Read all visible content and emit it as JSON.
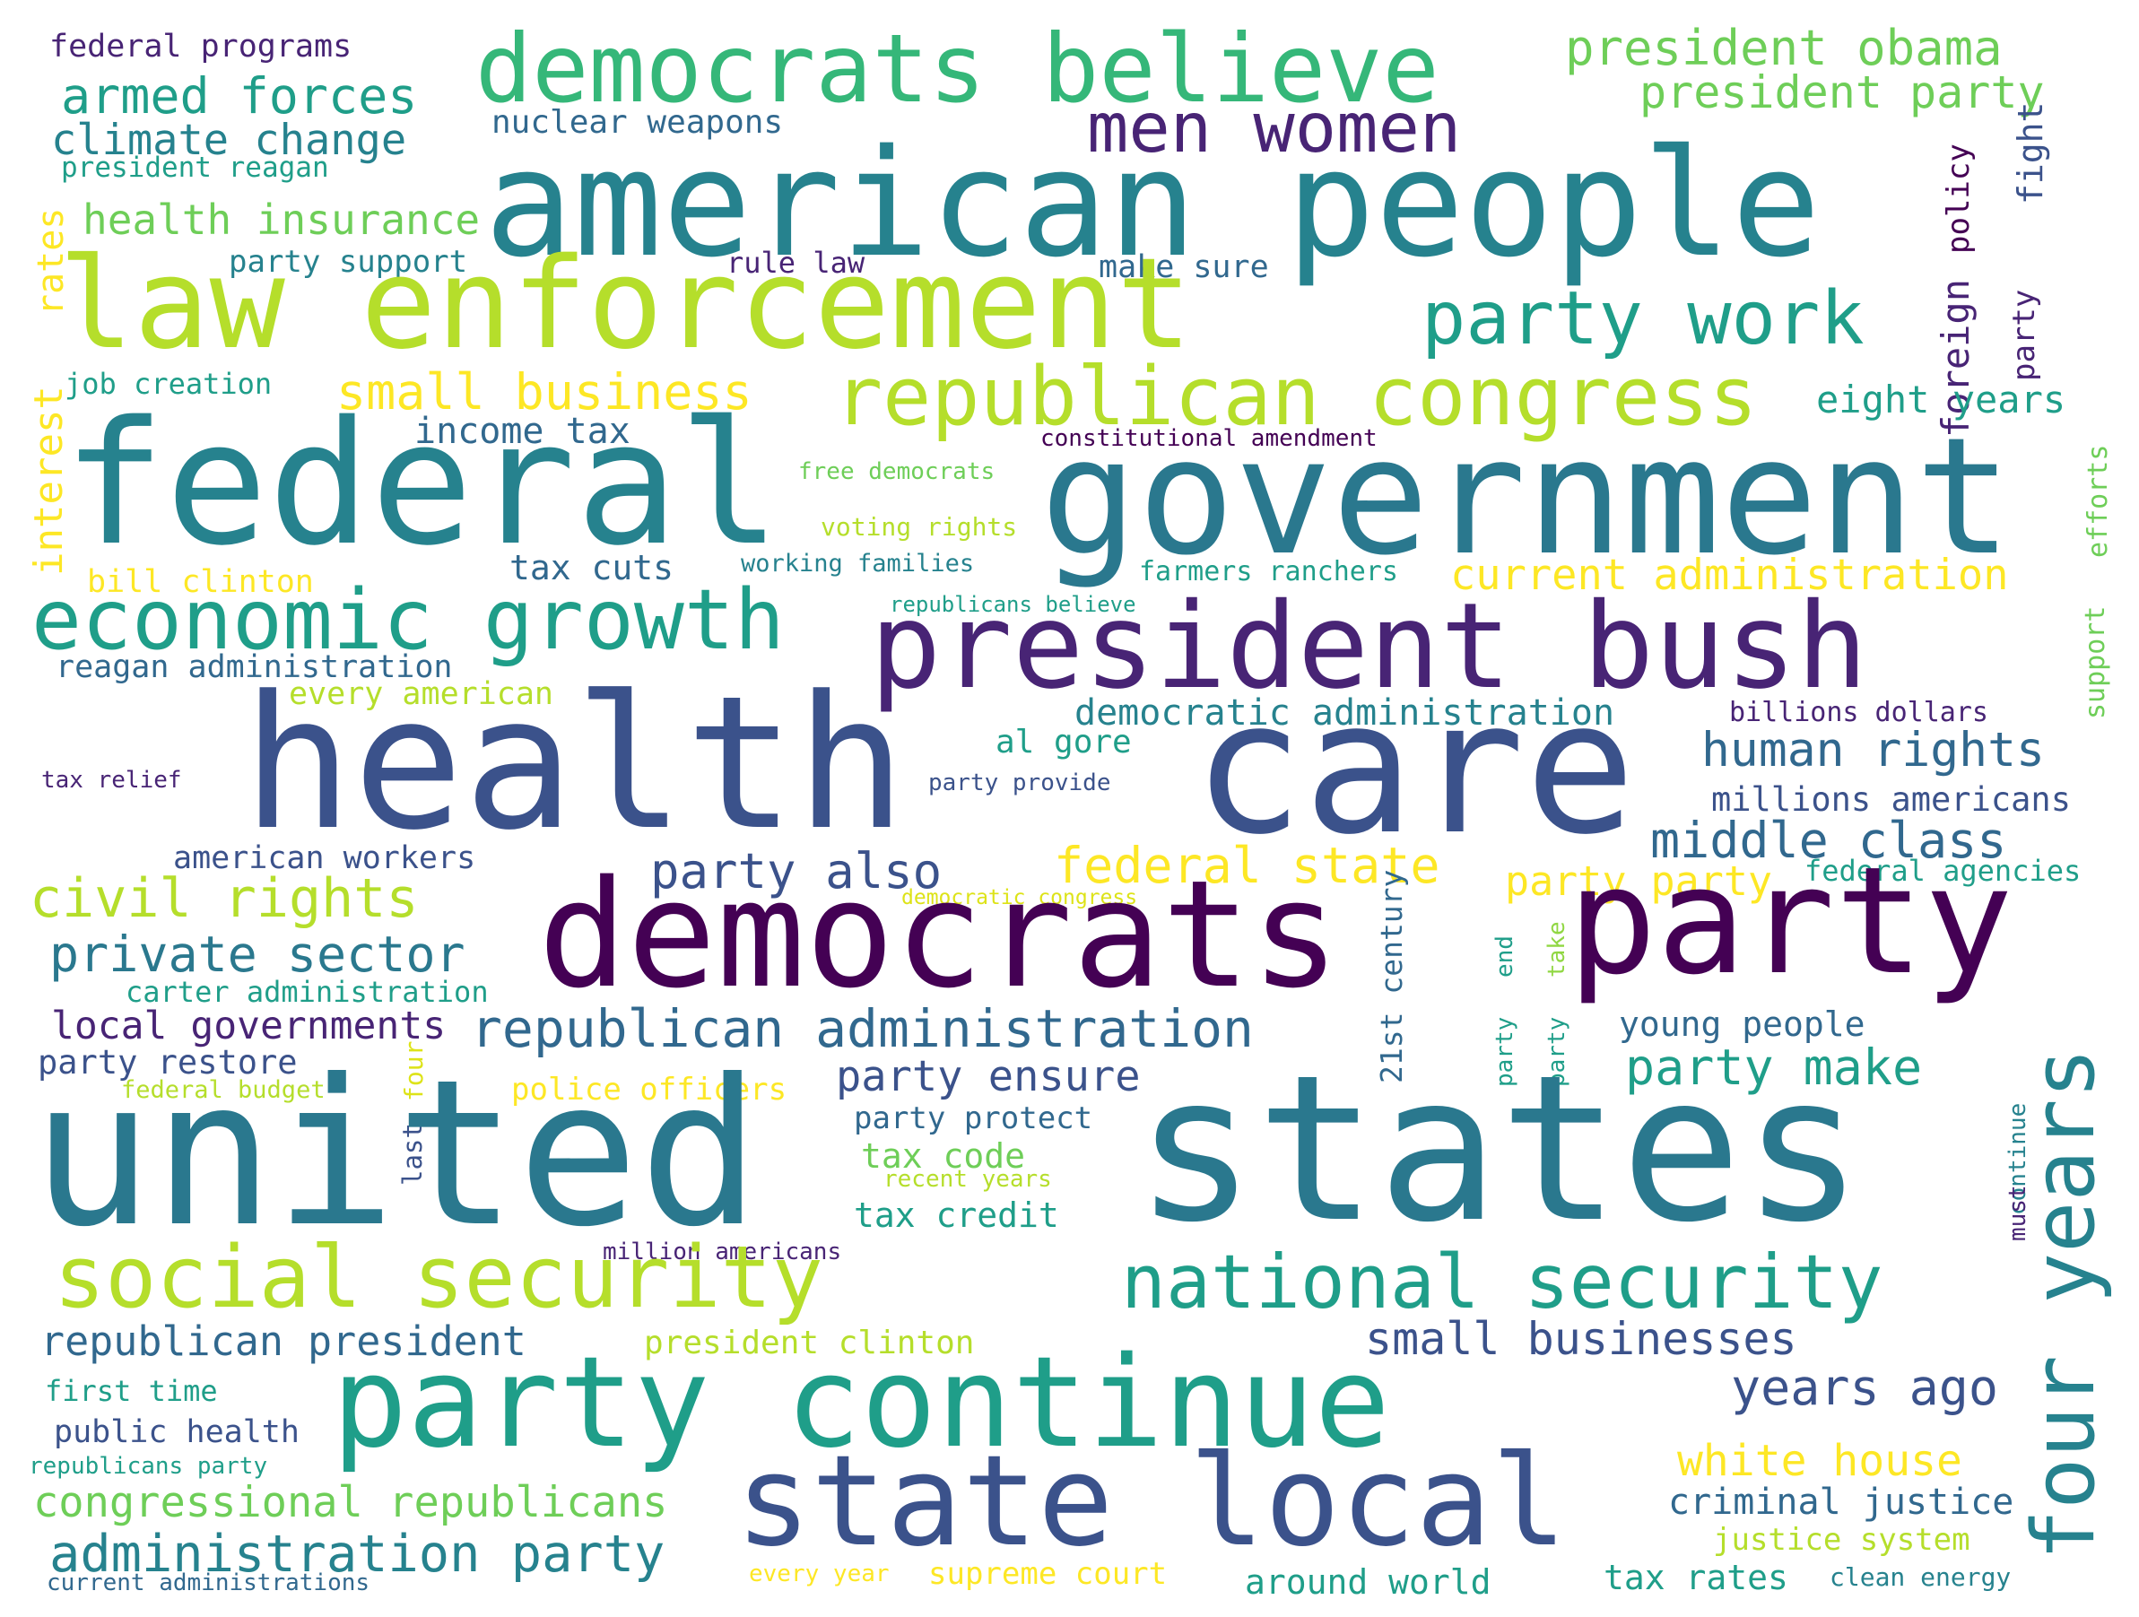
{
  "palette": {
    "purple": "#482475",
    "dark_purple": "#440154",
    "indigo": "#3b528b",
    "blue": "#31688e",
    "teal": "#26828e",
    "dark_teal": "#2a788e",
    "sea": "#1f9e89",
    "green": "#35b779",
    "light_green": "#6ece58",
    "lime": "#b5de2b",
    "yellow": "#fde725",
    "pale_yellow": "#dde318",
    "pale_green": "#90d743"
  },
  "words": [
    {
      "text": "federal programs",
      "color": "purple"
    },
    {
      "text": "democrats believe",
      "color": "green"
    },
    {
      "text": "president obama",
      "color": "light_green"
    },
    {
      "text": "armed forces",
      "color": "sea"
    },
    {
      "text": "president party",
      "color": "light_green"
    },
    {
      "text": "men women",
      "color": "purple"
    },
    {
      "text": "climate change",
      "color": "teal"
    },
    {
      "text": "nuclear weapons",
      "color": "blue"
    },
    {
      "text": "american people",
      "color": "teal"
    },
    {
      "text": "president reagan",
      "color": "sea"
    },
    {
      "text": "health insurance",
      "color": "light_green"
    },
    {
      "text": "policy",
      "color": "dark_purple"
    },
    {
      "text": "fight",
      "color": "indigo"
    },
    {
      "text": "rates",
      "color": "yellow"
    },
    {
      "text": "party support",
      "color": "teal"
    },
    {
      "text": "rule law",
      "color": "purple"
    },
    {
      "text": "make sure",
      "color": "blue"
    },
    {
      "text": "law enforcement",
      "color": "lime"
    },
    {
      "text": "party work",
      "color": "sea"
    },
    {
      "text": "foreign",
      "color": "purple"
    },
    {
      "text": "party",
      "color": "purple"
    },
    {
      "text": "job creation",
      "color": "sea"
    },
    {
      "text": "small business",
      "color": "yellow"
    },
    {
      "text": "republican congress",
      "color": "lime"
    },
    {
      "text": "eight years",
      "color": "sea"
    },
    {
      "text": "interest",
      "color": "yellow"
    },
    {
      "text": "income tax",
      "color": "blue"
    },
    {
      "text": "constitutional amendment",
      "color": "dark_purple"
    },
    {
      "text": "efforts",
      "color": "light_green"
    },
    {
      "text": "federal",
      "color": "teal"
    },
    {
      "text": "government",
      "color": "dark_teal"
    },
    {
      "text": "free democrats",
      "color": "light_green"
    },
    {
      "text": "voting rights",
      "color": "lime"
    },
    {
      "text": "bill clinton",
      "color": "yellow"
    },
    {
      "text": "tax cuts",
      "color": "blue"
    },
    {
      "text": "working families",
      "color": "teal"
    },
    {
      "text": "farmers ranchers",
      "color": "sea"
    },
    {
      "text": "current administration",
      "color": "yellow"
    },
    {
      "text": "economic growth",
      "color": "sea"
    },
    {
      "text": "republicans believe",
      "color": "sea"
    },
    {
      "text": "support",
      "color": "light_green"
    },
    {
      "text": "president bush",
      "color": "purple"
    },
    {
      "text": "reagan administration",
      "color": "blue"
    },
    {
      "text": "every american",
      "color": "lime"
    },
    {
      "text": "democratic administration",
      "color": "teal"
    },
    {
      "text": "billions dollars",
      "color": "purple"
    },
    {
      "text": "health",
      "color": "indigo"
    },
    {
      "text": "care",
      "color": "indigo"
    },
    {
      "text": "al gore",
      "color": "sea"
    },
    {
      "text": "human rights",
      "color": "blue"
    },
    {
      "text": "tax relief",
      "color": "purple"
    },
    {
      "text": "party provide",
      "color": "indigo"
    },
    {
      "text": "millions americans",
      "color": "indigo"
    },
    {
      "text": "middle class",
      "color": "blue"
    },
    {
      "text": "american workers",
      "color": "indigo"
    },
    {
      "text": "federal state",
      "color": "yellow"
    },
    {
      "text": "party also",
      "color": "indigo"
    },
    {
      "text": "federal agencies",
      "color": "sea"
    },
    {
      "text": "civil rights",
      "color": "lime"
    },
    {
      "text": "democratic congress",
      "color": "pale_yellow"
    },
    {
      "text": "party party",
      "color": "yellow"
    },
    {
      "text": "democrats",
      "color": "dark_purple"
    },
    {
      "text": "party",
      "color": "dark_purple"
    },
    {
      "text": "private sector",
      "color": "dark_teal"
    },
    {
      "text": "21st century",
      "color": "blue"
    },
    {
      "text": "end",
      "color": "sea"
    },
    {
      "text": "take",
      "color": "pale_green"
    },
    {
      "text": "four years",
      "color": "teal"
    },
    {
      "text": "carter administration",
      "color": "sea"
    },
    {
      "text": "local governments",
      "color": "purple"
    },
    {
      "text": "republican administration",
      "color": "blue"
    },
    {
      "text": "young people",
      "color": "blue"
    },
    {
      "text": "party",
      "color": "sea"
    },
    {
      "text": "party",
      "color": "sea"
    },
    {
      "text": "party restore",
      "color": "indigo"
    },
    {
      "text": "party make",
      "color": "sea"
    },
    {
      "text": "federal budget",
      "color": "lime"
    },
    {
      "text": "four",
      "color": "pale_yellow"
    },
    {
      "text": "police officers",
      "color": "yellow"
    },
    {
      "text": "party ensure",
      "color": "indigo"
    },
    {
      "text": "continue",
      "color": "teal"
    },
    {
      "text": "last",
      "color": "indigo"
    },
    {
      "text": "party protect",
      "color": "blue"
    },
    {
      "text": "must",
      "color": "purple"
    },
    {
      "text": "united",
      "color": "dark_teal"
    },
    {
      "text": "states",
      "color": "dark_teal"
    },
    {
      "text": "tax code",
      "color": "light_green"
    },
    {
      "text": "recent years",
      "color": "lime"
    },
    {
      "text": "tax credit",
      "color": "sea"
    },
    {
      "text": "million americans",
      "color": "purple"
    },
    {
      "text": "social security",
      "color": "lime"
    },
    {
      "text": "national security",
      "color": "sea"
    },
    {
      "text": "republican president",
      "color": "blue"
    },
    {
      "text": "president clinton",
      "color": "lime"
    },
    {
      "text": "small businesses",
      "color": "indigo"
    },
    {
      "text": "party continue",
      "color": "sea"
    },
    {
      "text": "years ago",
      "color": "indigo"
    },
    {
      "text": "first time",
      "color": "sea"
    },
    {
      "text": "public health",
      "color": "indigo"
    },
    {
      "text": "white house",
      "color": "yellow"
    },
    {
      "text": "republicans party",
      "color": "sea"
    },
    {
      "text": "state local",
      "color": "indigo"
    },
    {
      "text": "criminal justice",
      "color": "blue"
    },
    {
      "text": "congressional republicans",
      "color": "light_green"
    },
    {
      "text": "justice system",
      "color": "lime"
    },
    {
      "text": "administration party",
      "color": "teal"
    },
    {
      "text": "current administrations",
      "color": "blue"
    },
    {
      "text": "every year",
      "color": "yellow"
    },
    {
      "text": "supreme court",
      "color": "yellow"
    },
    {
      "text": "around world",
      "color": "sea"
    },
    {
      "text": "tax rates",
      "color": "sea"
    },
    {
      "text": "clean energy",
      "color": "teal"
    }
  ]
}
